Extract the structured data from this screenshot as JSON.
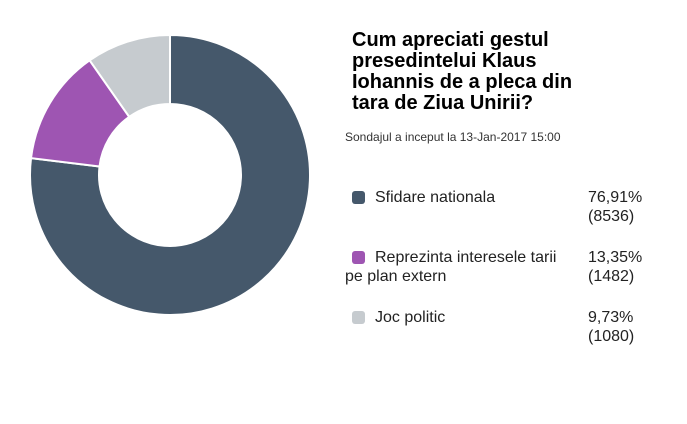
{
  "poll": {
    "title": "Cum apreciati gestul presedintelui Klaus Iohannis de a pleca din tara de Ziua Unirii?",
    "title_lines": [
      "Cum apreciati gestul",
      "presedintelui Klaus",
      "Iohannis de a pleca din",
      "tara de Ziua Unirii?"
    ],
    "subtitle": "Sondajul a inceput la 13-Jan-2017 15:00"
  },
  "legend": {
    "items": [
      {
        "label": "Sfidare nationala",
        "label_line1": "Sfidare nationala",
        "label_line2": "",
        "percent": "76,91%",
        "count": "(8536)",
        "color": "#45586B"
      },
      {
        "label": "Reprezinta interesele tarii pe plan extern",
        "label_line1": "Reprezinta interesele tarii",
        "label_line2": "pe plan extern",
        "percent": "13,35%",
        "count": "(1482)",
        "color": "#9E55B2"
      },
      {
        "label": "Joc politic",
        "label_line1": "Joc politic",
        "label_line2": "",
        "percent": "9,73%",
        "count": "(1080)",
        "color": "#C6CBCF"
      }
    ]
  },
  "chart_data": {
    "type": "pie",
    "subtype": "donut",
    "title": "Cum apreciati gestul presedintelui Klaus Iohannis de a pleca din tara de Ziua Unirii?",
    "categories": [
      "Sfidare nationala",
      "Reprezinta interesele tarii pe plan extern",
      "Joc politic"
    ],
    "values": [
      76.91,
      13.35,
      9.73
    ],
    "counts": [
      8536,
      1482,
      1080
    ],
    "percent_labels": [
      "76,91%",
      "13,35%",
      "9,73%"
    ],
    "colors": [
      "#45586B",
      "#9E55B2",
      "#C6CBCF"
    ],
    "start_angle_deg": 0,
    "direction": "clockwise",
    "inner_radius_ratio": 0.51,
    "slice_gap_color": "#FFFFFF",
    "legend_position": "right"
  }
}
